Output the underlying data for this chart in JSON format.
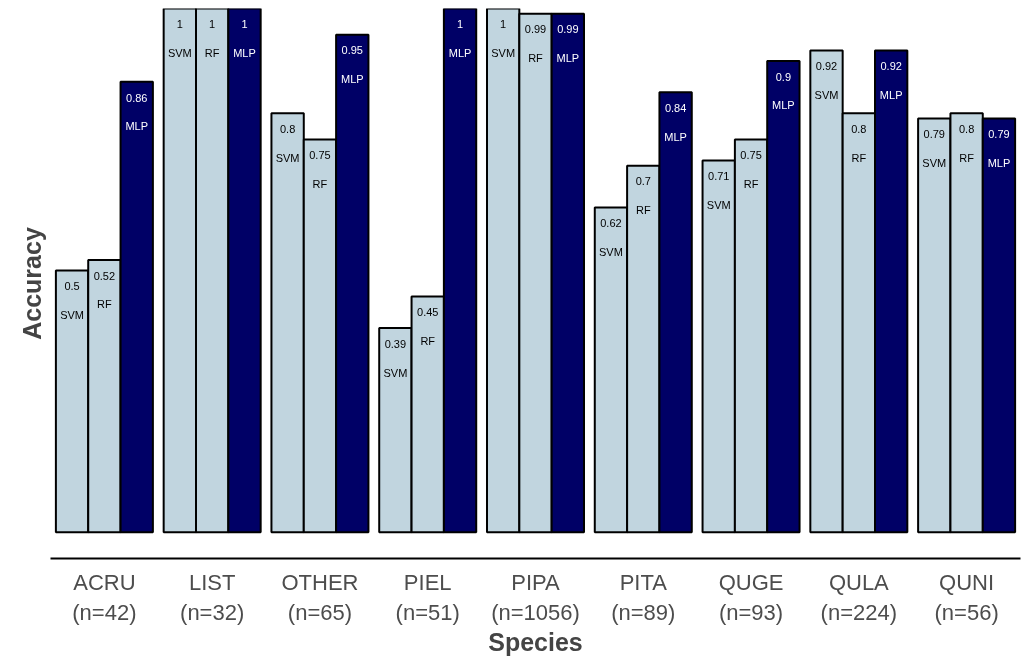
{
  "chart_data": {
    "type": "bar",
    "xlabel": "Species",
    "ylabel": "Accuracy",
    "categories": [
      "ACRU\n(n=42)",
      "LIST\n(n=32)",
      "OTHER\n(n=65)",
      "PIEL\n(n=51)",
      "PIPA\n(n=1056)",
      "PITA\n(n=89)",
      "QUGE\n(n=93)",
      "QULA\n(n=224)",
      "QUNI\n(n=56)"
    ],
    "series": [
      {
        "name": "SVM",
        "color": "#c1d5df",
        "values": [
          0.5,
          1,
          0.8,
          0.39,
          1,
          0.62,
          0.71,
          0.92,
          0.79
        ]
      },
      {
        "name": "RF",
        "color": "#c1d5df",
        "values": [
          0.52,
          1,
          0.75,
          0.45,
          0.99,
          0.7,
          0.75,
          0.8,
          0.8
        ]
      },
      {
        "name": "MLP",
        "color": "#000066",
        "values": [
          0.86,
          1,
          0.95,
          1,
          0.99,
          0.84,
          0.9,
          0.92,
          0.79
        ]
      }
    ],
    "ylim": [
      -0.05,
      1.0
    ],
    "data_labels": true,
    "grid": false,
    "tick_labels": "x"
  }
}
